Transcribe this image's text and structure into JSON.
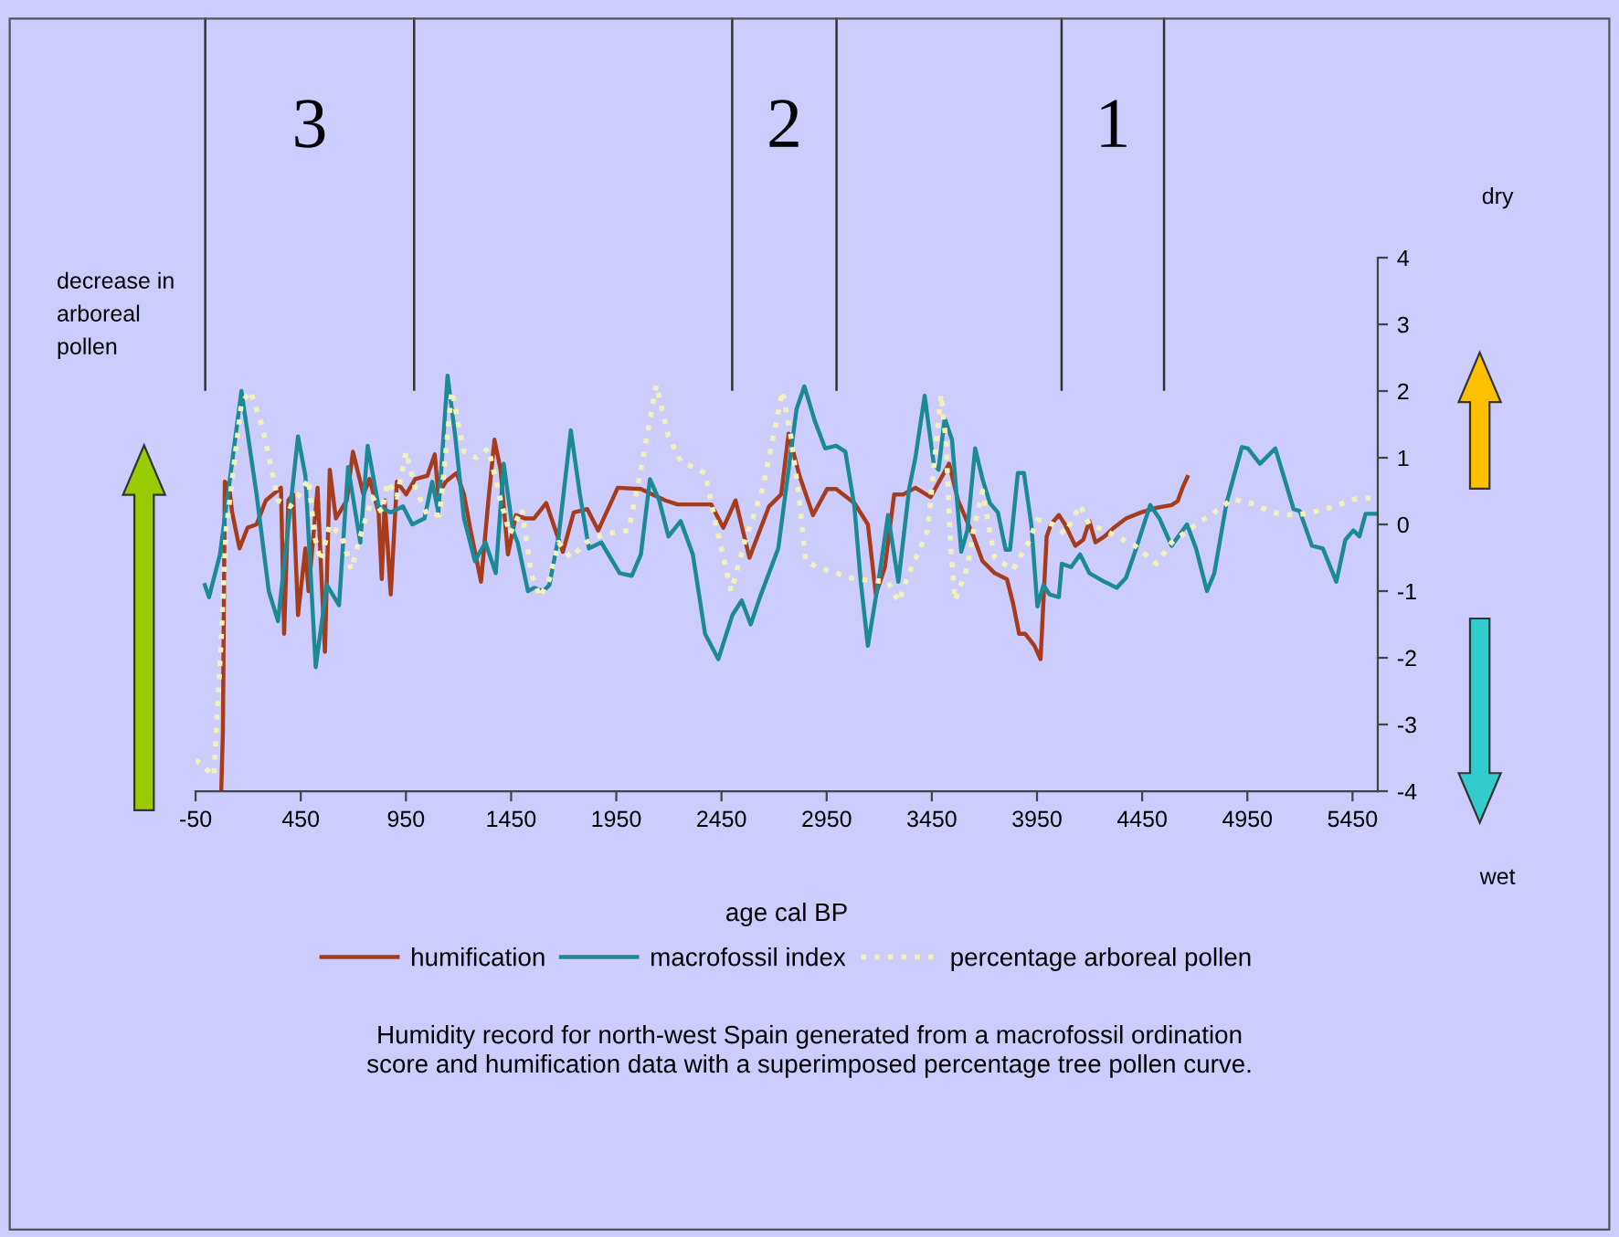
{
  "chart_data": {
    "type": "line",
    "xlabel": "age cal BP",
    "xlim": [
      -50,
      5570
    ],
    "xticks": [
      -50,
      450,
      950,
      1450,
      1950,
      2450,
      2950,
      3450,
      3950,
      4450,
      4950,
      5450
    ],
    "ylim": [
      -4,
      4
    ],
    "yticks": [
      -4,
      -3,
      -2,
      -1,
      0,
      1,
      2,
      3,
      4
    ],
    "grid": false,
    "legend": "bottom",
    "marker": "none",
    "ref_lines": [
      {
        "axis": "x",
        "value": -4,
        "color": "#333333"
      },
      {
        "axis": "x",
        "value": 989,
        "color": "#333333"
      },
      {
        "axis": "x",
        "value": 2501,
        "color": "#333333"
      },
      {
        "axis": "x",
        "value": 2997,
        "color": "#333333"
      },
      {
        "axis": "x",
        "value": 4067,
        "color": "#333333"
      },
      {
        "axis": "x",
        "value": 4554,
        "color": "#333333"
      }
    ],
    "annotations": [
      "3",
      "2",
      "1",
      "dry",
      "wet",
      "decrease in arboreal pollen",
      "Humidity record for north-west Spain generated from a macrofossil ordination\nscore and humification data with a superimposed percentage tree pollen curve."
    ],
    "series": [
      {
        "name": "humification",
        "color": "#a63c1c",
        "line_style": "solid",
        "x": [
          72,
          80,
          89,
          110,
          124,
          159,
          197,
          240,
          284,
          356,
          371,
          391,
          414,
          437,
          472,
          487,
          530,
          545,
          565,
          588,
          617,
          669,
          698,
          748,
          777,
          820,
          835,
          849,
          878,
          907,
          951,
          994,
          1052,
          1087,
          1104,
          1139,
          1191,
          1226,
          1255,
          1307,
          1342,
          1371,
          1400,
          1435,
          1473,
          1516,
          1559,
          1617,
          1696,
          1748,
          1812,
          1864,
          1957,
          2067,
          2183,
          2241,
          2401,
          2459,
          2517,
          2583,
          2676,
          2734,
          2769,
          2821,
          2885,
          2952,
          2995,
          3082,
          3146,
          3184,
          3227,
          3271,
          3314,
          3372,
          3444,
          3532,
          3575,
          3648,
          3691,
          3749,
          3807,
          3836,
          3865,
          3894,
          3938,
          3967,
          3996,
          4016,
          4054,
          4083,
          4132,
          4170,
          4199,
          4228,
          4271,
          4315,
          4373,
          4445,
          4518,
          4590,
          4619,
          4642,
          4665
        ],
        "values": [
          -4.0,
          -3.1,
          0.64,
          0.55,
          0.18,
          -0.36,
          -0.05,
          0,
          0.36,
          0.55,
          -1.64,
          0.36,
          0.45,
          -1.36,
          -0.36,
          -1.0,
          0.55,
          -0.55,
          -1.91,
          0.82,
          0.09,
          0.36,
          1.09,
          0.45,
          0.68,
          0.18,
          -0.82,
          0.36,
          -1.05,
          0.64,
          0.45,
          0.68,
          0.73,
          1.05,
          0.45,
          0.64,
          0.77,
          0.45,
          -0.05,
          -0.86,
          0.36,
          1.27,
          0.82,
          -0.45,
          0.14,
          0.09,
          0.09,
          0.32,
          -0.41,
          0.18,
          0.23,
          -0.09,
          0.55,
          0.53,
          0.36,
          0.3,
          0.3,
          -0.05,
          0.36,
          -0.5,
          0.27,
          0.45,
          1.36,
          0.73,
          0.14,
          0.53,
          0.53,
          0.32,
          0,
          -1.05,
          -0.64,
          0.45,
          0.45,
          0.55,
          0.41,
          0.91,
          0.36,
          -0.18,
          -0.55,
          -0.73,
          -0.82,
          -1.18,
          -1.64,
          -1.64,
          -1.82,
          -2.02,
          -0.18,
          0,
          0.14,
          0,
          -0.32,
          -0.23,
          0.05,
          -0.27,
          -0.18,
          -0.05,
          0.09,
          0.18,
          0.25,
          0.29,
          0.35,
          0.55,
          0.71
        ]
      },
      {
        "name": "macrofossil index",
        "color": "#1b8a96",
        "line_style": "solid",
        "x": [
          -6,
          14,
          66,
          168,
          240,
          298,
          342,
          437,
          472,
          521,
          574,
          632,
          675,
          733,
          768,
          820,
          878,
          936,
          980,
          1038,
          1075,
          1104,
          1148,
          1183,
          1226,
          1278,
          1328,
          1377,
          1415,
          1458,
          1481,
          1530,
          1559,
          1603,
          1632,
          1676,
          1734,
          1777,
          1820,
          1879,
          1966,
          2024,
          2067,
          2110,
          2154,
          2198,
          2256,
          2314,
          2372,
          2435,
          2502,
          2546,
          2589,
          2633,
          2720,
          2769,
          2807,
          2844,
          2894,
          2943,
          2995,
          3039,
          3082,
          3111,
          3146,
          3198,
          3242,
          3291,
          3343,
          3372,
          3416,
          3459,
          3482,
          3511,
          3546,
          3590,
          3619,
          3656,
          3691,
          3726,
          3764,
          3801,
          3822,
          3859,
          3888,
          3923,
          3952,
          3981,
          4010,
          4054,
          4068,
          4112,
          4155,
          4199,
          4271,
          4329,
          4373,
          4416,
          4488,
          4532,
          4590,
          4663,
          4706,
          4758,
          4793,
          4851,
          4924,
          4953,
          5010,
          5083,
          5170,
          5199,
          5257,
          5309,
          5373,
          5416,
          5454,
          5483,
          5512,
          5570
        ],
        "values": [
          -0.91,
          -1.09,
          -0.45,
          2.0,
          0.45,
          -1.0,
          -1.45,
          1.32,
          0.73,
          -2.14,
          -0.91,
          -1.21,
          0.86,
          -0.27,
          1.18,
          0.27,
          0.18,
          0.27,
          0,
          0.09,
          0.64,
          0.18,
          2.23,
          1.36,
          0.09,
          -0.55,
          -0.27,
          -0.73,
          0.91,
          -0.09,
          -0.27,
          -1.0,
          -0.95,
          -1.0,
          -0.91,
          -0.18,
          1.41,
          0.45,
          -0.36,
          -0.27,
          -0.73,
          -0.77,
          -0.45,
          0.68,
          0.36,
          -0.18,
          0.05,
          -0.45,
          -1.64,
          -2.02,
          -1.36,
          -1.14,
          -1.5,
          -1.09,
          -0.36,
          0.82,
          1.73,
          2.07,
          1.55,
          1.14,
          1.18,
          1.09,
          0.27,
          -0.82,
          -1.82,
          -0.82,
          0.14,
          -0.86,
          0.55,
          1.0,
          1.93,
          0.91,
          0.82,
          1.59,
          1.27,
          -0.41,
          -0.09,
          1.14,
          0.68,
          0.32,
          0.18,
          -0.38,
          -0.38,
          0.77,
          0.77,
          0,
          -1.23,
          -0.91,
          -1.05,
          -1.09,
          -0.59,
          -0.64,
          -0.45,
          -0.73,
          -0.86,
          -0.95,
          -0.8,
          -0.41,
          0.29,
          0.09,
          -0.32,
          0,
          -0.36,
          -1.0,
          -0.73,
          0.32,
          1.16,
          1.14,
          0.91,
          1.14,
          0.23,
          0.2,
          -0.32,
          -0.36,
          -0.86,
          -0.23,
          -0.09,
          -0.18,
          0.16,
          0.16
        ]
      },
      {
        "name": "percentage arboreal pollen",
        "color": "#f2f2b8",
        "line_style": "dotted",
        "x": [
          -50,
          37,
          72,
          95,
          168,
          211,
          269,
          342,
          400,
          443,
          487,
          516,
          545,
          588,
          646,
          690,
          733,
          791,
          835,
          864,
          907,
          951,
          994,
          1052,
          1110,
          1168,
          1226,
          1284,
          1342,
          1400,
          1444,
          1501,
          1545,
          1588,
          1632,
          1676,
          1734,
          1806,
          1893,
          2009,
          2067,
          2140,
          2198,
          2256,
          2372,
          2430,
          2496,
          2560,
          2647,
          2740,
          2778,
          2821,
          2850,
          2908,
          2995,
          3082,
          3169,
          3242,
          3291,
          3343,
          3430,
          3494,
          3517,
          3540,
          3561,
          3619,
          3648,
          3691,
          3749,
          3836,
          3909,
          3952,
          4025,
          4083,
          4155,
          4199,
          4271,
          4329,
          4416,
          4518,
          4590,
          4706,
          4793,
          4880,
          4967,
          5054,
          5126,
          5228,
          5344,
          5460,
          5547
        ],
        "values": [
          -3.53,
          -3.77,
          -1.73,
          -0.09,
          1.82,
          2.0,
          1.45,
          0.36,
          0.27,
          0.45,
          0.68,
          -0.18,
          -0.55,
          0,
          -0.18,
          -0.68,
          -0.18,
          0.41,
          0.18,
          0.64,
          0.41,
          1.09,
          0.55,
          0.14,
          0.14,
          2.0,
          1.09,
          1.0,
          1.14,
          0.36,
          -0.14,
          0.23,
          -0.73,
          -1.09,
          -0.82,
          -0.27,
          -0.5,
          -0.27,
          -0.14,
          -0.09,
          0.82,
          2.09,
          1.32,
          0.95,
          0.77,
          -0.09,
          -1.0,
          -0.27,
          0.55,
          2.0,
          1.36,
          0.36,
          -0.55,
          -0.64,
          -0.73,
          -0.82,
          -0.84,
          -0.86,
          -1.16,
          -0.73,
          -0.09,
          1.95,
          1.27,
          -0.36,
          -1.14,
          -0.64,
          -0.09,
          0.5,
          -0.5,
          -0.68,
          -0.27,
          0.07,
          0,
          -0.14,
          0.29,
          0,
          -0.09,
          -0.18,
          -0.32,
          -0.59,
          -0.27,
          0,
          0.18,
          0.38,
          0.32,
          0.2,
          0.14,
          0.16,
          0.25,
          0.38,
          0.4
        ]
      }
    ]
  }
}
